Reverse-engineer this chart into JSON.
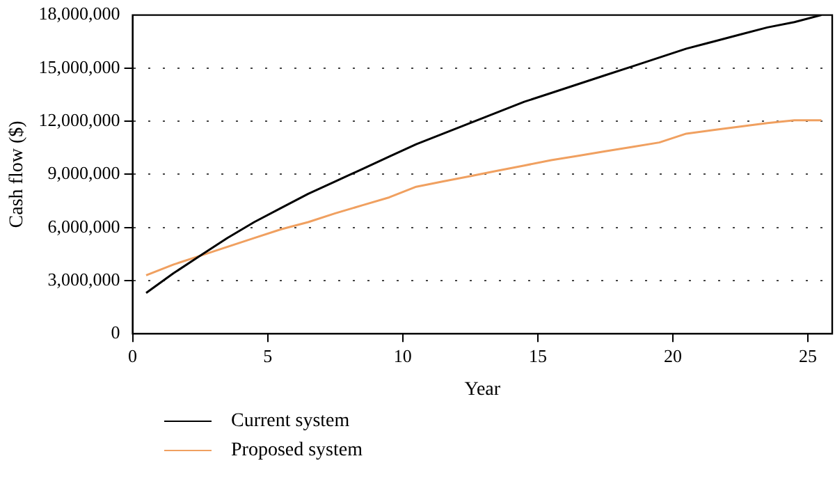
{
  "chart_data": {
    "type": "line",
    "xlabel": "Year",
    "ylabel": "Cash flow ($)",
    "xlim": [
      0,
      25.9
    ],
    "xticks": [
      0,
      5,
      10,
      15,
      20,
      25
    ],
    "ylim": [
      0,
      18000000
    ],
    "yticks": [
      0,
      {
        "value": 3000000,
        "label": "3,000,000"
      },
      {
        "value": 6000000,
        "label": "6,000,000"
      },
      {
        "value": 9000000,
        "label": "9,000,000"
      },
      {
        "value": 12000000,
        "label": "12,000,000"
      },
      {
        "value": 15000000,
        "label": "15,000,000"
      },
      {
        "value": 18000000,
        "label": "18,000,000"
      }
    ],
    "grid": "y",
    "legend": "bottom left",
    "line_style": "solid",
    "marker": "none",
    "x": [
      0.5,
      1.5,
      2.5,
      3.5,
      4.5,
      5.5,
      6.5,
      7.5,
      8.5,
      9.5,
      10.5,
      11.5,
      12.5,
      13.5,
      14.5,
      15.5,
      16.5,
      17.5,
      18.5,
      19.5,
      20.5,
      21.5,
      22.5,
      23.5,
      24.5,
      25.5
    ],
    "series": [
      {
        "name": "Current system",
        "color": "#000000",
        "values": [
          2300000,
          3400000,
          4400000,
          5400000,
          6300000,
          7100000,
          7900000,
          8600000,
          9300000,
          10000000,
          10700000,
          11300000,
          11900000,
          12500000,
          13100000,
          13600000,
          14100000,
          14600000,
          15100000,
          15600000,
          16100000,
          16500000,
          16900000,
          17300000,
          17600000,
          18000000
        ]
      },
      {
        "name": "Proposed system",
        "color": "#f0a060",
        "values": [
          3300000,
          3900000,
          4400000,
          4900000,
          5400000,
          5900000,
          6300000,
          6800000,
          7250000,
          7700000,
          8300000,
          8600000,
          8900000,
          9200000,
          9500000,
          9800000,
          10050000,
          10300000,
          10550000,
          10800000,
          11300000,
          11500000,
          11700000,
          11900000,
          12050000,
          12050000
        ]
      }
    ]
  }
}
